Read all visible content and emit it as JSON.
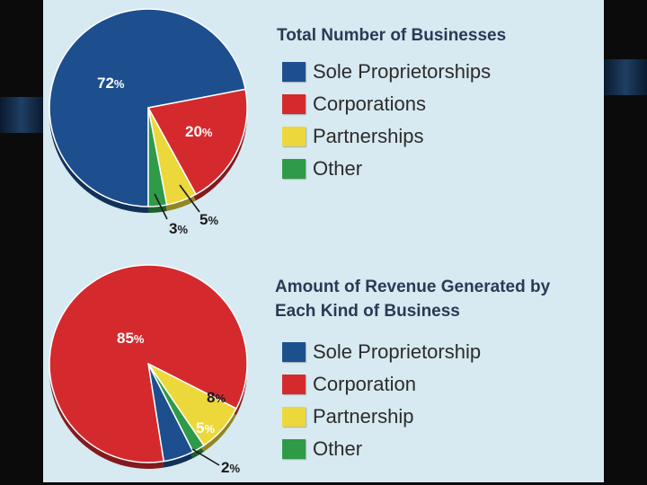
{
  "chart_data": [
    {
      "type": "pie",
      "title": "Total Number of Businesses",
      "slices": [
        {
          "name": "Sole Proprietorships",
          "value": 72,
          "label": "72",
          "color": "#1d4f8f"
        },
        {
          "name": "Corporations",
          "value": 20,
          "label": "20",
          "color": "#d42a2e"
        },
        {
          "name": "Partnerships",
          "value": 5,
          "label": "5",
          "color": "#ecd83a"
        },
        {
          "name": "Other",
          "value": 3,
          "label": "3",
          "color": "#2f9a48"
        }
      ],
      "legend_position": "right"
    },
    {
      "type": "pie",
      "title": "Amount of Revenue Generated by Each Kind of Business",
      "slices": [
        {
          "name": "Sole Proprietorship",
          "value": 5,
          "label": "5",
          "color": "#1d4f8f"
        },
        {
          "name": "Corporation",
          "value": 85,
          "label": "85",
          "color": "#d42a2e"
        },
        {
          "name": "Partnership",
          "value": 8,
          "label": "8",
          "color": "#ecd83a"
        },
        {
          "name": "Other",
          "value": 2,
          "label": "2",
          "color": "#2f9a48"
        }
      ],
      "legend_position": "right"
    }
  ],
  "percent_sign": "%",
  "titles": {
    "top": "Total Number of Businesses",
    "bottom_line1": "Amount of Revenue Generated by",
    "bottom_line2": "Each Kind of Business"
  },
  "legend_top": [
    "Sole Proprietorships",
    "Corporations",
    "Partnerships",
    "Other"
  ],
  "legend_bottom": [
    "Sole Proprietorship",
    "Corporation",
    "Partnership",
    "Other"
  ],
  "colors": {
    "sole": "#1d4f8f",
    "corporation": "#d42a2e",
    "partnership": "#ecd83a",
    "other": "#2f9a48",
    "panel": "#d7e9f1",
    "frame": "#0b0b0b"
  }
}
